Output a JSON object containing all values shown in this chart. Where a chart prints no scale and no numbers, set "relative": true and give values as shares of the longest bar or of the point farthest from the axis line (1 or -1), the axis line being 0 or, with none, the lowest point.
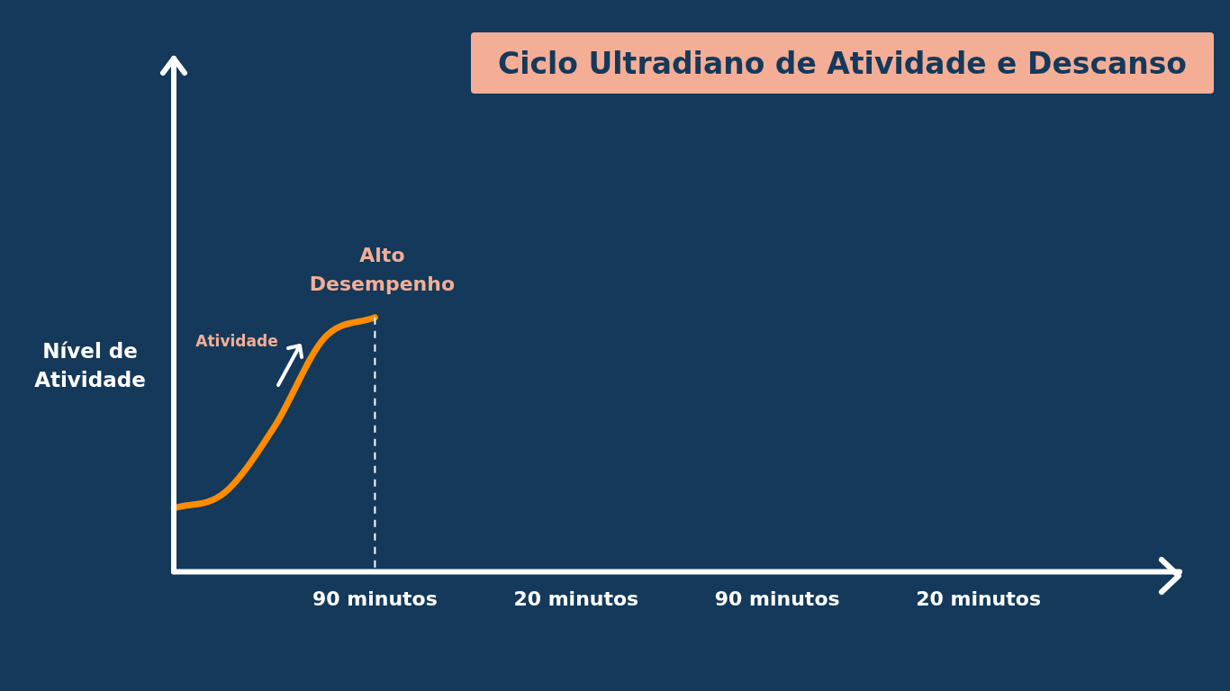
{
  "chart_data": {
    "type": "line",
    "title": "Ciclo Ultradiano de Atividade e Descanso",
    "ylabel": "Nível de Atividade",
    "relative": true,
    "legend": false,
    "grid": false,
    "marker": "none",
    "line_style": "solid",
    "categories": [
      null,
      null,
      null,
      null,
      "90 minutos",
      null,
      null,
      null,
      "20 minutos",
      null,
      null,
      null,
      "90 minutos",
      null,
      null,
      null,
      "20 minutos",
      null,
      null,
      null,
      null
    ],
    "series": [
      {
        "color": "#ff8c00",
        "values": [
          0.25,
          0.31,
          0.57,
          0.92,
          1,
          null,
          null,
          null,
          null,
          null,
          null,
          null,
          null,
          null,
          null,
          null,
          null,
          null,
          null,
          null,
          null
        ]
      }
    ],
    "ref_lines": [
      {
        "axis": "x",
        "value": "90 minutos",
        "color": "#ffffff",
        "line_style": "dashed"
      }
    ],
    "annotations": [
      "Alto Desempenho",
      "Atividade"
    ]
  }
}
